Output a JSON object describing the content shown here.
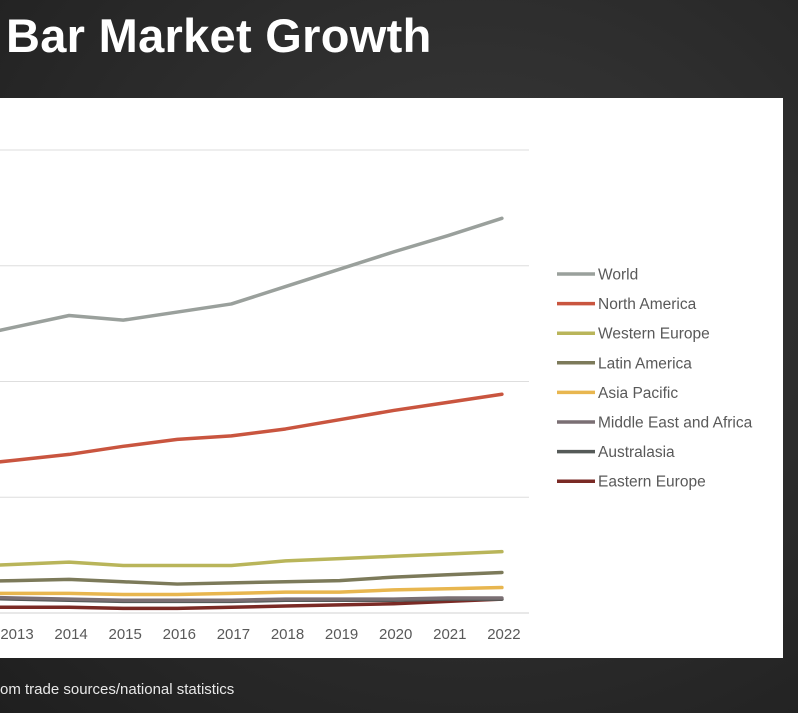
{
  "title": "Bar Market Growth",
  "footer": "om trade sources/national statistics",
  "chart_data": {
    "type": "line",
    "title": "",
    "xlabel": "",
    "ylabel": "",
    "x": [
      2013,
      2014,
      2015,
      2016,
      2017,
      2018,
      2019,
      2020,
      2021,
      2022
    ],
    "ylim": [
      0,
      4
    ],
    "grid": true,
    "legend_position": "right",
    "series": [
      {
        "name": "World",
        "color": "#9aa09c",
        "values": [
          2.47,
          2.57,
          2.53,
          2.6,
          2.67,
          2.82,
          2.97,
          3.12,
          3.26,
          3.41
        ]
      },
      {
        "name": "North America",
        "color": "#c9553f",
        "values": [
          1.32,
          1.37,
          1.44,
          1.5,
          1.53,
          1.59,
          1.67,
          1.75,
          1.82,
          1.89
        ]
      },
      {
        "name": "Western Europe",
        "color": "#b9b55a",
        "values": [
          0.42,
          0.44,
          0.41,
          0.41,
          0.41,
          0.45,
          0.47,
          0.49,
          0.51,
          0.53
        ]
      },
      {
        "name": "Latin America",
        "color": "#7c7a5a",
        "values": [
          0.28,
          0.29,
          0.27,
          0.25,
          0.26,
          0.27,
          0.28,
          0.31,
          0.33,
          0.35
        ]
      },
      {
        "name": "Asia Pacific",
        "color": "#e8b64f",
        "values": [
          0.17,
          0.17,
          0.16,
          0.16,
          0.17,
          0.18,
          0.18,
          0.2,
          0.21,
          0.22
        ]
      },
      {
        "name": "Middle East and Africa",
        "color": "#7a6f73",
        "values": [
          0.13,
          0.12,
          0.11,
          0.11,
          0.11,
          0.12,
          0.12,
          0.12,
          0.13,
          0.13
        ]
      },
      {
        "name": "Australasia",
        "color": "#555a58",
        "values": [
          0.12,
          0.11,
          0.1,
          0.1,
          0.1,
          0.11,
          0.11,
          0.11,
          0.12,
          0.12
        ]
      },
      {
        "name": "Eastern Europe",
        "color": "#7a2a25",
        "values": [
          0.05,
          0.05,
          0.04,
          0.04,
          0.05,
          0.06,
          0.07,
          0.08,
          0.1,
          0.12
        ]
      }
    ]
  }
}
